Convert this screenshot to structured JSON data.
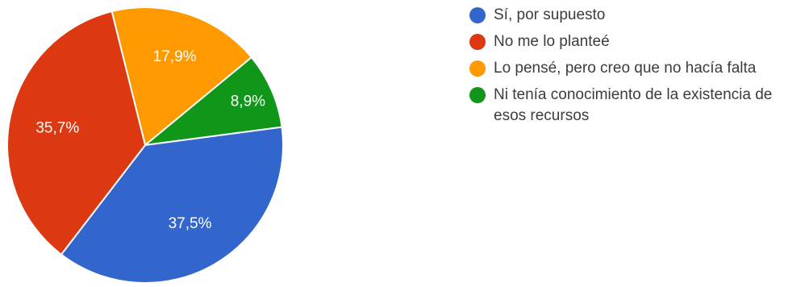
{
  "chart_data": {
    "type": "pie",
    "title": "",
    "slices": [
      {
        "label": "Sí, por supuesto",
        "value": 37.5,
        "display": "37,5%",
        "color": "#3366cc"
      },
      {
        "label": "No me lo planteé",
        "value": 35.7,
        "display": "35,7%",
        "color": "#dc3912"
      },
      {
        "label": "Lo pensé, pero creo que no hacía falta",
        "value": 17.9,
        "display": "17,9%",
        "color": "#ff9900"
      },
      {
        "label": "Ni tenía conocimiento de la existencia de esos recursos",
        "value": 8.9,
        "display": "8,9%",
        "color": "#109618"
      }
    ],
    "start_angle_deg": 90,
    "direction": "clockwise",
    "legend_position": "right"
  }
}
